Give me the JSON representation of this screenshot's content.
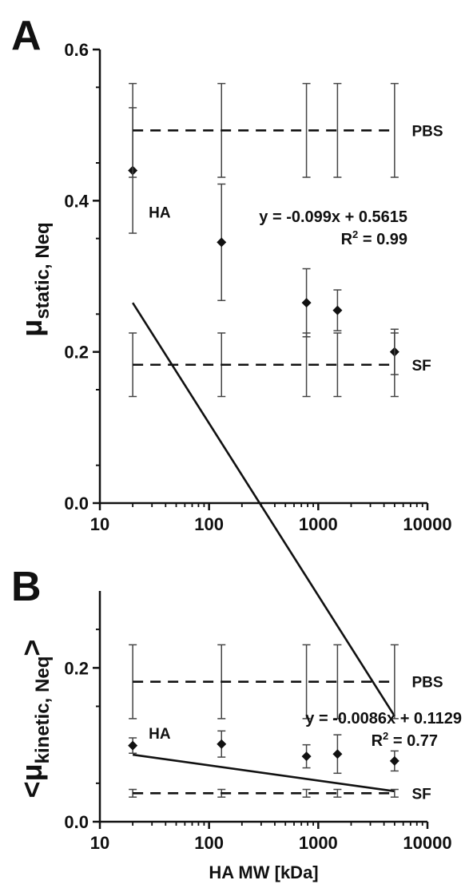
{
  "chart_data": [
    {
      "panel_label": "A",
      "type": "scatter",
      "ylabel_symbol": "μ",
      "ylabel_subscript": "static, Neq",
      "ylabel_prefix": "",
      "ylabel_suffix": "",
      "xlabel": "",
      "x_scale": "log",
      "xlim": [
        10,
        10000
      ],
      "ylim": [
        0.0,
        0.6
      ],
      "x_ticks": [
        10,
        100,
        1000,
        10000
      ],
      "x_tick_labels": [
        "10",
        "100",
        "1000",
        "10000"
      ],
      "y_ticks": [
        0.0,
        0.2,
        0.4,
        0.6
      ],
      "y_tick_labels": [
        "0.0",
        "0.2",
        "0.4",
        "0.6"
      ],
      "y_minor_step": 0.1,
      "series": [
        {
          "name": "HA",
          "x": [
            20,
            130,
            780,
            1500,
            5000
          ],
          "y": [
            0.44,
            0.345,
            0.265,
            0.255,
            0.2
          ],
          "y_err": [
            0.083,
            0.077,
            0.045,
            0.027,
            0.03
          ],
          "fit_line": {
            "slope": -0.099,
            "intercept": 0.5615,
            "x_range": [
              20,
              5000
            ]
          }
        },
        {
          "name": "PBS",
          "x": [
            20,
            130,
            780,
            1500,
            5000
          ],
          "y": [
            0.493,
            0.493,
            0.493,
            0.493,
            0.493
          ],
          "y_err": [
            0.062,
            0.062,
            0.062,
            0.062,
            0.062
          ],
          "style": "dashed"
        },
        {
          "name": "SF",
          "x": [
            20,
            130,
            780,
            1500,
            5000
          ],
          "y": [
            0.183,
            0.183,
            0.183,
            0.183,
            0.183
          ],
          "y_err": [
            0.042,
            0.042,
            0.042,
            0.042,
            0.042
          ],
          "style": "dashed"
        }
      ],
      "annotations": {
        "series_labels": [
          {
            "text": "PBS",
            "x": 7200,
            "y": 0.493
          },
          {
            "text": "SF",
            "x": 7200,
            "y": 0.183
          },
          {
            "text": "HA",
            "x": 28,
            "y": 0.385
          }
        ],
        "equation": "y = -0.099x + 0.5615",
        "r2_prefix": "R",
        "r2_value": " = 0.99"
      }
    },
    {
      "panel_label": "B",
      "type": "scatter",
      "ylabel_symbol": "μ",
      "ylabel_subscript": "kinetic, Neq",
      "ylabel_prefix": "<",
      "ylabel_suffix": ">",
      "xlabel": "HA MW [kDa]",
      "x_scale": "log",
      "xlim": [
        10,
        10000
      ],
      "ylim": [
        0.0,
        0.3
      ],
      "x_ticks": [
        10,
        100,
        1000,
        10000
      ],
      "x_tick_labels": [
        "10",
        "100",
        "1000",
        "10000"
      ],
      "y_ticks": [
        0.0,
        0.2
      ],
      "y_tick_labels": [
        "0.0",
        "0.2"
      ],
      "y_minor_step": 0.1,
      "series": [
        {
          "name": "HA",
          "x": [
            20,
            130,
            780,
            1500,
            5000
          ],
          "y": [
            0.099,
            0.101,
            0.085,
            0.088,
            0.079
          ],
          "y_err": [
            0.01,
            0.017,
            0.015,
            0.025,
            0.013
          ],
          "fit_line": {
            "slope": -0.0086,
            "intercept": 0.1129,
            "x_range": [
              20,
              5000
            ]
          }
        },
        {
          "name": "PBS",
          "x": [
            20,
            130,
            780,
            1500,
            5000
          ],
          "y": [
            0.182,
            0.182,
            0.182,
            0.182,
            0.182
          ],
          "y_err": [
            0.048,
            0.048,
            0.048,
            0.048,
            0.048
          ],
          "style": "dashed"
        },
        {
          "name": "SF",
          "x": [
            20,
            130,
            780,
            1500,
            5000
          ],
          "y": [
            0.037,
            0.037,
            0.037,
            0.037,
            0.037
          ],
          "y_err": [
            0.005,
            0.005,
            0.005,
            0.005,
            0.005
          ],
          "style": "dashed"
        }
      ],
      "annotations": {
        "series_labels": [
          {
            "text": "PBS",
            "x": 7200,
            "y": 0.182
          },
          {
            "text": "SF",
            "x": 7200,
            "y": 0.037
          },
          {
            "text": "HA",
            "x": 28,
            "y": 0.115
          }
        ],
        "equation": "y = -0.0086x + 0.1129",
        "r2_prefix": "R",
        "r2_value": " = 0.77"
      }
    }
  ]
}
